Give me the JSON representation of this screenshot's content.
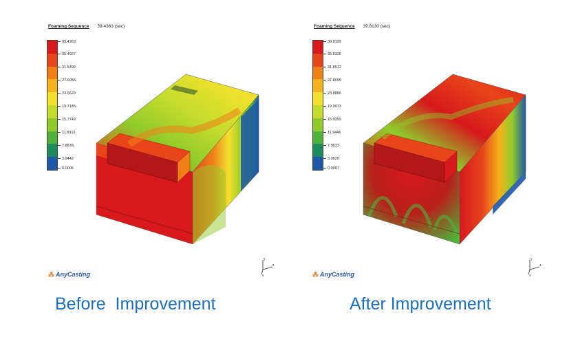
{
  "panels": [
    {
      "title": "Foaming Sequence",
      "time": "39.4363 (sec)",
      "legend_values": [
        "39.4363",
        "35.4927",
        "31.5492",
        "27.6056",
        "23.6620",
        "19.7185",
        "15.7749",
        "11.8313",
        "7.8878",
        "3.9442",
        "0.0006"
      ],
      "logo": "AnyCasting",
      "caption": "Before  Improvement"
    },
    {
      "title": "Foaming Sequence",
      "time": "39.8130 (sec)",
      "legend_values": [
        "39.8139",
        "35.8325",
        "31.8512",
        "27.8699",
        "23.8886",
        "19.9073",
        "15.9259",
        "11.9446",
        "7.9633",
        "3.9820",
        "0.0007"
      ],
      "logo": "AnyCasting",
      "caption": "After Improvement"
    }
  ],
  "legend_colors": [
    "#d7191c",
    "#e8451a",
    "#f07f18",
    "#f5b21a",
    "#f2e12d",
    "#c6dc2c",
    "#8fcb2b",
    "#4db33a",
    "#1d8c5c",
    "#1f57a8"
  ],
  "axis_labels": {
    "y": "y",
    "z": "z",
    "x": "x"
  },
  "logo_mark": "⁂"
}
